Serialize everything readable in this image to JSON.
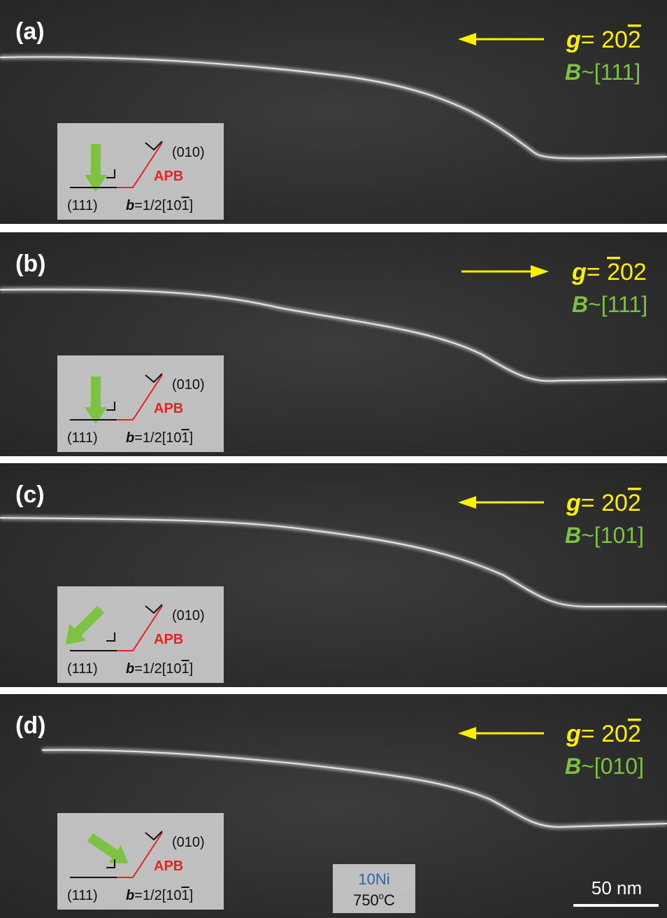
{
  "panels": [
    {
      "label": "(a)",
      "g": {
        "symbol": "g",
        "prefix": "= 20",
        "overlined": "2",
        "suffix": ""
      },
      "B": {
        "symbol": "B",
        "text": "~[111]"
      },
      "inset": {
        "plane1": "(010)",
        "apb": "APB",
        "plane2": "(111)",
        "b_symbol": "b",
        "b_prefix": "=1/2[10",
        "b_over": "1",
        "b_suffix": "]"
      }
    },
    {
      "label": "(b)",
      "g": {
        "symbol": "g",
        "prefix": "= ",
        "overlined": "2",
        "suffix": "02"
      },
      "B": {
        "symbol": "B",
        "text": "~[111]"
      },
      "inset": {
        "plane1": "(010)",
        "apb": "APB",
        "plane2": "(111)",
        "b_symbol": "b",
        "b_prefix": "=1/2[10",
        "b_over": "1",
        "b_suffix": "]"
      }
    },
    {
      "label": "(c)",
      "g": {
        "symbol": "g",
        "prefix": "= 20",
        "overlined": "2",
        "suffix": ""
      },
      "B": {
        "symbol": "B",
        "text": "~[101]"
      },
      "inset": {
        "plane1": "(010)",
        "apb": "APB",
        "plane2": "(111)",
        "b_symbol": "b",
        "b_prefix": "=1/2[10",
        "b_over": "1",
        "b_suffix": "]"
      }
    },
    {
      "label": "(d)",
      "g": {
        "symbol": "g",
        "prefix": "= 20",
        "overlined": "2",
        "suffix": ""
      },
      "B": {
        "symbol": "B",
        "text": "~[010]"
      },
      "inset": {
        "plane1": "(010)",
        "apb": "APB",
        "plane2": "(111)",
        "b_symbol": "b",
        "b_prefix": "=1/2[10",
        "b_over": "1",
        "b_suffix": "]"
      }
    }
  ],
  "footer": {
    "alloy": "10Ni",
    "temp_value": "750",
    "temp_degree": "o",
    "temp_unit": "C",
    "scale_bar": "50 nm"
  }
}
